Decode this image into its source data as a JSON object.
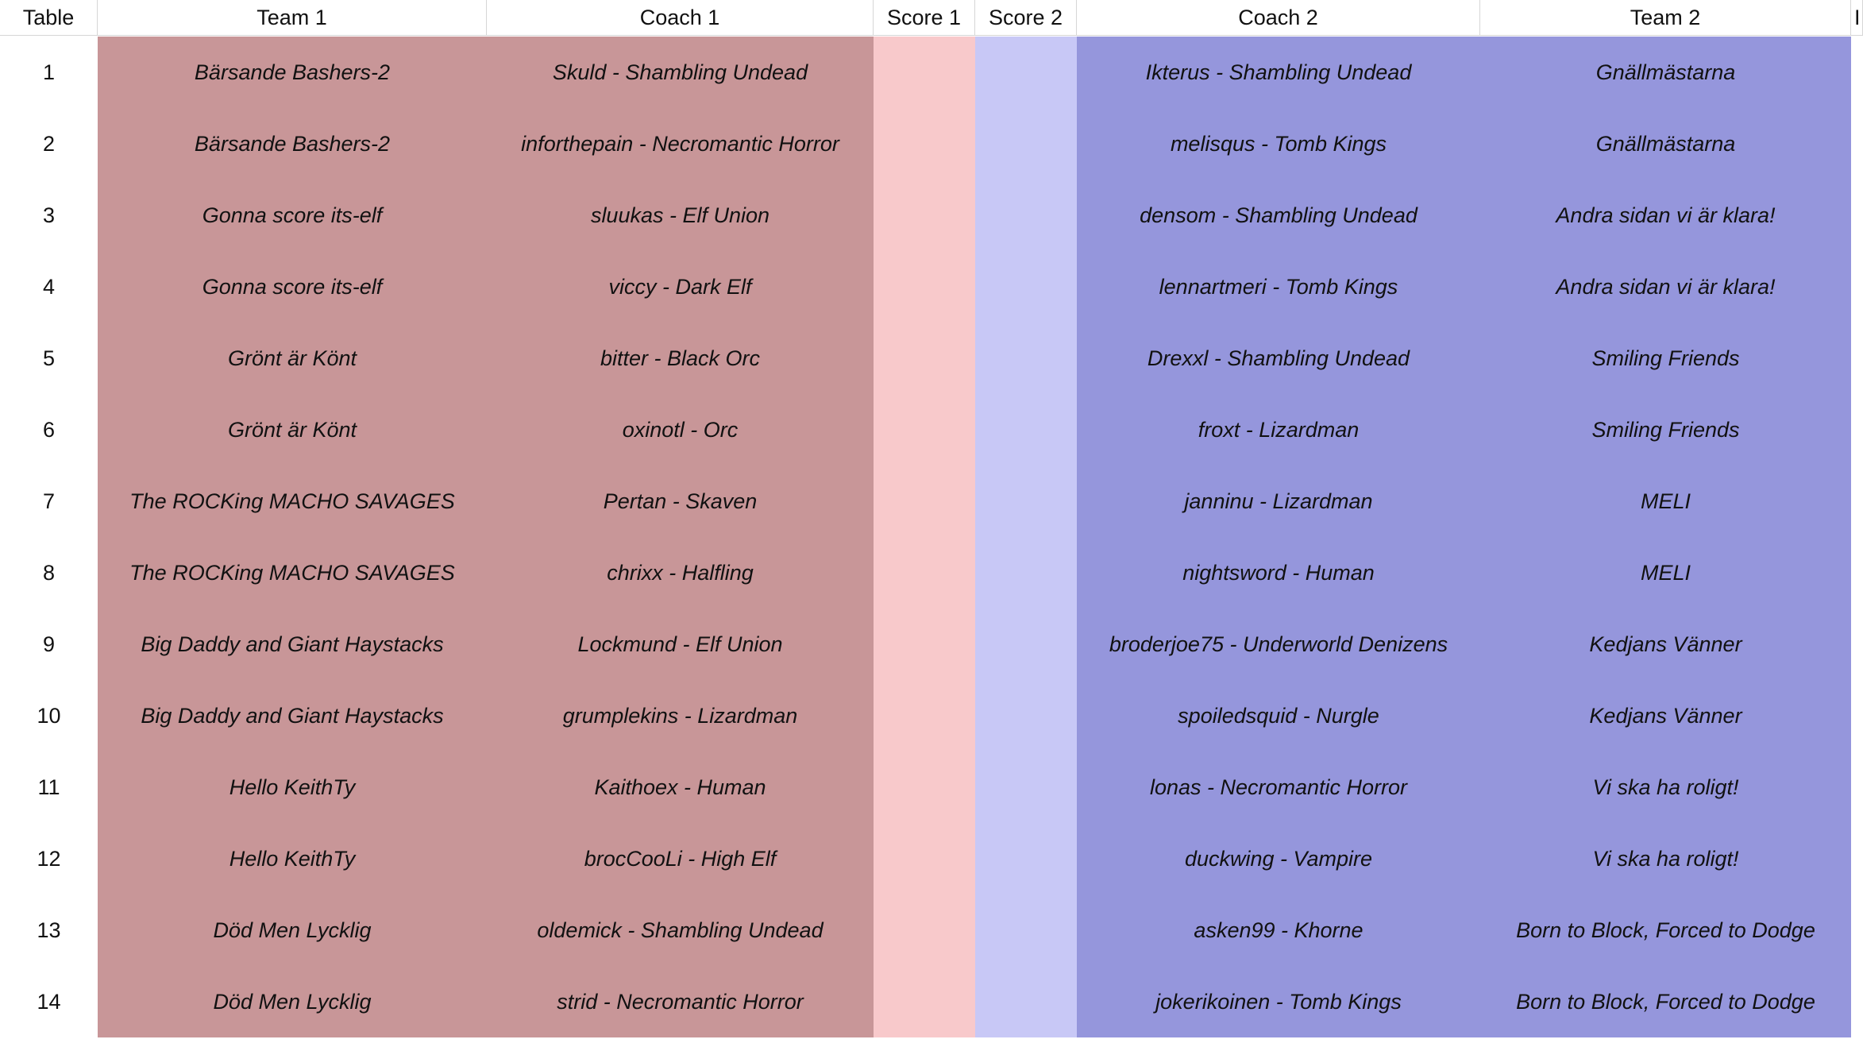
{
  "headers": {
    "table": "Table",
    "team1": "Team 1",
    "coach1": "Coach 1",
    "score1": "Score 1",
    "score2": "Score 2",
    "coach2": "Coach 2",
    "team2": "Team 2",
    "extra": "I"
  },
  "rows": [
    {
      "table": "1",
      "team1": "Bärsande Bashers-2",
      "coach1": "Skuld - Shambling Undead",
      "score1": "",
      "score2": "",
      "coach2": "Ikterus - Shambling Undead",
      "team2": "Gnällmästarna"
    },
    {
      "table": "2",
      "team1": "Bärsande Bashers-2",
      "coach1": "inforthepain - Necromantic Horror",
      "score1": "",
      "score2": "",
      "coach2": "melisqus - Tomb Kings",
      "team2": "Gnällmästarna"
    },
    {
      "table": "3",
      "team1": "Gonna score its-elf",
      "coach1": "sluukas - Elf Union",
      "score1": "",
      "score2": "",
      "coach2": "densom - Shambling Undead",
      "team2": "Andra sidan vi är klara!"
    },
    {
      "table": "4",
      "team1": "Gonna score its-elf",
      "coach1": "viccy - Dark Elf",
      "score1": "",
      "score2": "",
      "coach2": "lennartmeri - Tomb Kings",
      "team2": "Andra sidan vi är klara!"
    },
    {
      "table": "5",
      "team1": "Grönt är Könt",
      "coach1": "bitter - Black Orc",
      "score1": "",
      "score2": "",
      "coach2": "Drexxl - Shambling Undead",
      "team2": "Smiling Friends"
    },
    {
      "table": "6",
      "team1": "Grönt är Könt",
      "coach1": "oxinotl - Orc",
      "score1": "",
      "score2": "",
      "coach2": "froxt - Lizardman",
      "team2": "Smiling Friends"
    },
    {
      "table": "7",
      "team1": "The ROCKing MACHO SAVAGES",
      "coach1": "Pertan - Skaven",
      "score1": "",
      "score2": "",
      "coach2": "janninu - Lizardman",
      "team2": "MELI"
    },
    {
      "table": "8",
      "team1": "The ROCKing MACHO SAVAGES",
      "coach1": "chrixx - Halfling",
      "score1": "",
      "score2": "",
      "coach2": "nightsword - Human",
      "team2": "MELI"
    },
    {
      "table": "9",
      "team1": "Big Daddy and Giant Haystacks",
      "coach1": "Lockmund - Elf Union",
      "score1": "",
      "score2": "",
      "coach2": "broderjoe75 - Underworld Denizens",
      "team2": "Kedjans Vänner"
    },
    {
      "table": "10",
      "team1": "Big Daddy and Giant Haystacks",
      "coach1": "grumplekins - Lizardman",
      "score1": "",
      "score2": "",
      "coach2": "spoiledsquid - Nurgle",
      "team2": "Kedjans Vänner"
    },
    {
      "table": "11",
      "team1": "Hello KeithTy",
      "coach1": "Kaithoex - Human",
      "score1": "",
      "score2": "",
      "coach2": "lonas - Necromantic Horror",
      "team2": "Vi ska ha roligt!"
    },
    {
      "table": "12",
      "team1": "Hello KeithTy",
      "coach1": "brocCooLi - High Elf",
      "score1": "",
      "score2": "",
      "coach2": "duckwing - Vampire",
      "team2": "Vi ska ha roligt!"
    },
    {
      "table": "13",
      "team1": "Död Men Lycklig",
      "coach1": "oldemick - Shambling Undead",
      "score1": "",
      "score2": "",
      "coach2": "asken99 - Khorne",
      "team2": "Born to Block, Forced to Dodge"
    },
    {
      "table": "14",
      "team1": "Död Men Lycklig",
      "coach1": "strid - Necromantic Horror",
      "score1": "",
      "score2": "",
      "coach2": "jokerikoinen - Tomb Kings",
      "team2": "Born to Block, Forced to Dodge"
    }
  ],
  "colors": {
    "team1_bg": "#c89698",
    "score1_bg": "#f8c9cb",
    "score2_bg": "#c8c8f6",
    "team2_bg": "#9596dc"
  }
}
